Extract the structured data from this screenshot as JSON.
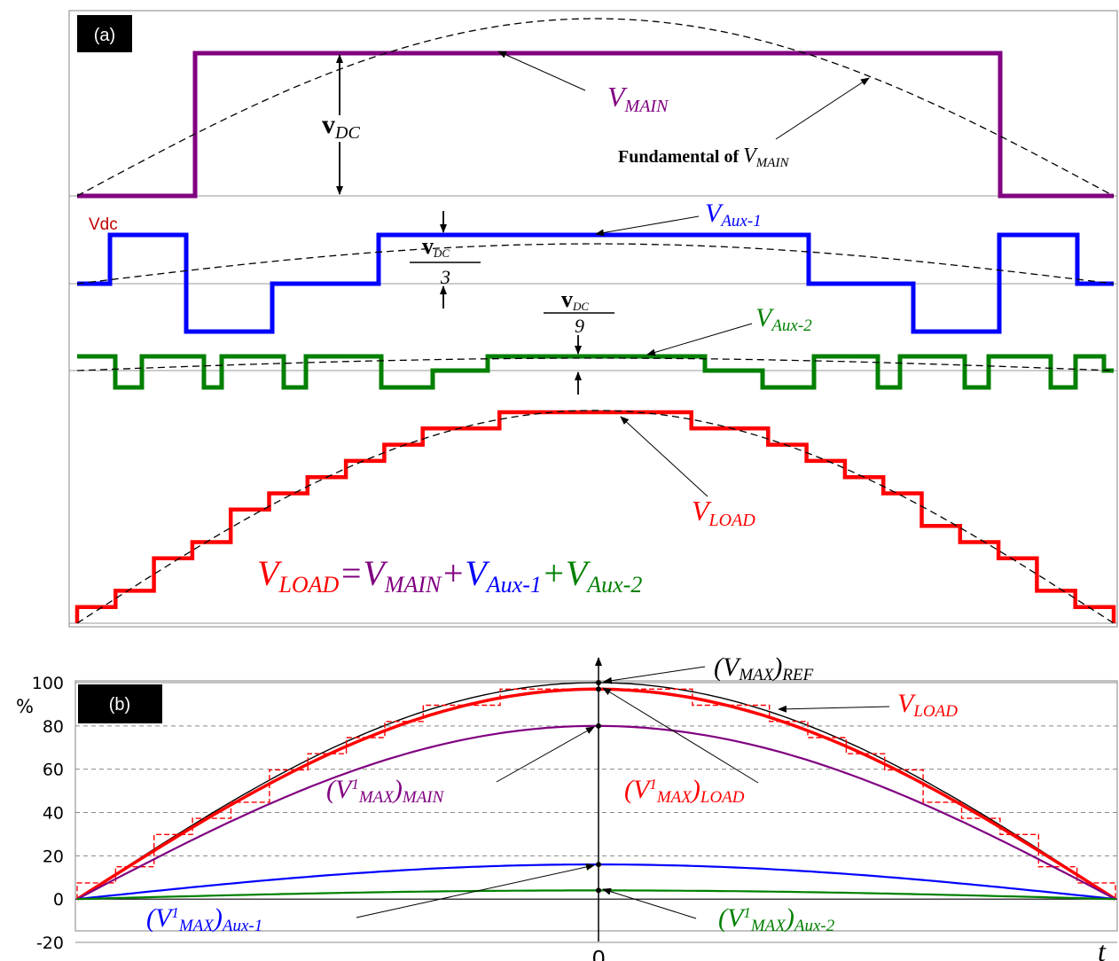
{
  "panel_a": {
    "tag": "(a)",
    "labels": {
      "v_main": {
        "main": "V",
        "sub": "MAIN"
      },
      "v_dc": {
        "main": "v",
        "sub": "DC"
      },
      "fundamental": {
        "text": "Fundamental  of ",
        "main": "V",
        "sub": "MAIN"
      },
      "vdc_marker": "Vdc",
      "v_aux1": {
        "main": "V",
        "sub": "Aux-1"
      },
      "vdc_third": {
        "num_main": "v",
        "num_sub": "DC",
        "den": "3"
      },
      "vdc_ninth": {
        "num_main": "v",
        "num_sub": "DC",
        "den": "9"
      },
      "v_aux2": {
        "main": "V",
        "sub": "Aux-2"
      },
      "v_load": {
        "main": "V",
        "sub": "LOAD"
      }
    },
    "equation": {
      "load": {
        "main": "V",
        "sub": "LOAD"
      },
      "eq": "=",
      "main": {
        "main": "V",
        "sub": "MAIN"
      },
      "plus1": "+",
      "aux1": {
        "main": "V",
        "sub": "Aux-1"
      },
      "plus2": "+",
      "aux2": {
        "main": "V",
        "sub": "Aux-2"
      }
    },
    "colors": {
      "main": "#800080",
      "aux1": "#0000ff",
      "aux2": "#008000",
      "load": "#ff0000",
      "dashed": "#000000"
    }
  },
  "panel_b": {
    "tag": "(b)",
    "unit": "%",
    "x_center_label": "0",
    "x_end_label": "t",
    "labels": {
      "vmax_ref": {
        "main": "(V",
        "sub": "MAX",
        "close": ")",
        "sub2": "REF"
      },
      "v_load": {
        "main": "V",
        "sub": "LOAD"
      },
      "v1_main": {
        "main": "(V",
        "sup": "1",
        "sub": "MAX",
        "close": ")",
        "sub2": "MAIN"
      },
      "v1_load": {
        "main": "(V",
        "sup": "1",
        "sub": "MAX",
        "close": ")",
        "sub2": "LOAD"
      },
      "v1_aux1": {
        "main": "(V",
        "sup": "1",
        "sub": "MAX",
        "close": ")",
        "sub2": "Aux-1"
      },
      "v1_aux2": {
        "main": "(V",
        "sup": "1",
        "sub": "MAX",
        "close": ")",
        "sub2": "Aux-2"
      }
    },
    "chart_data": {
      "type": "line",
      "ylim": [
        -20,
        100
      ],
      "yticks": [
        "100",
        "80",
        "60",
        "40",
        "20",
        "0",
        "-20"
      ],
      "grid": true,
      "series_peaks": {
        "ref": 100,
        "load": 97,
        "main": 80,
        "aux1": 16,
        "aux2": 4
      },
      "colors": {
        "ref": "#000000",
        "load": "#ff0000",
        "main": "#800080",
        "aux1": "#0000ff",
        "aux2": "#008000"
      }
    }
  }
}
